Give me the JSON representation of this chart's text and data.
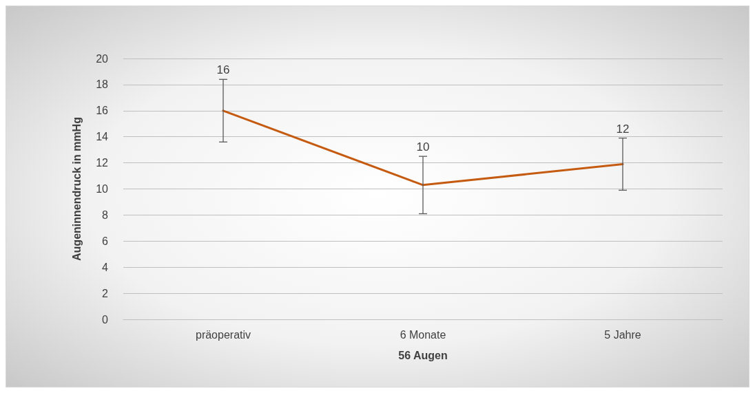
{
  "chart_data": {
    "type": "line",
    "xlabel": "56 Augen",
    "ylabel": "Augeninnendruck in mmHg",
    "categories": [
      "präoperativ",
      "6 Monate",
      "5 Jahre"
    ],
    "series": [
      {
        "color": "#c55a11",
        "values": [
          16,
          10.3,
          11.9
        ],
        "value_labels": [
          "16",
          "10",
          "12"
        ],
        "errors": [
          2.4,
          [
            8.1,
            12.5
          ],
          [
            9.9,
            13.9
          ]
        ]
      }
    ],
    "ylim": [
      0,
      20
    ],
    "yticks": [
      0,
      2,
      4,
      6,
      8,
      10,
      12,
      14,
      16,
      18,
      20
    ],
    "grid": "y",
    "marker": "none",
    "line_style": "solid"
  }
}
